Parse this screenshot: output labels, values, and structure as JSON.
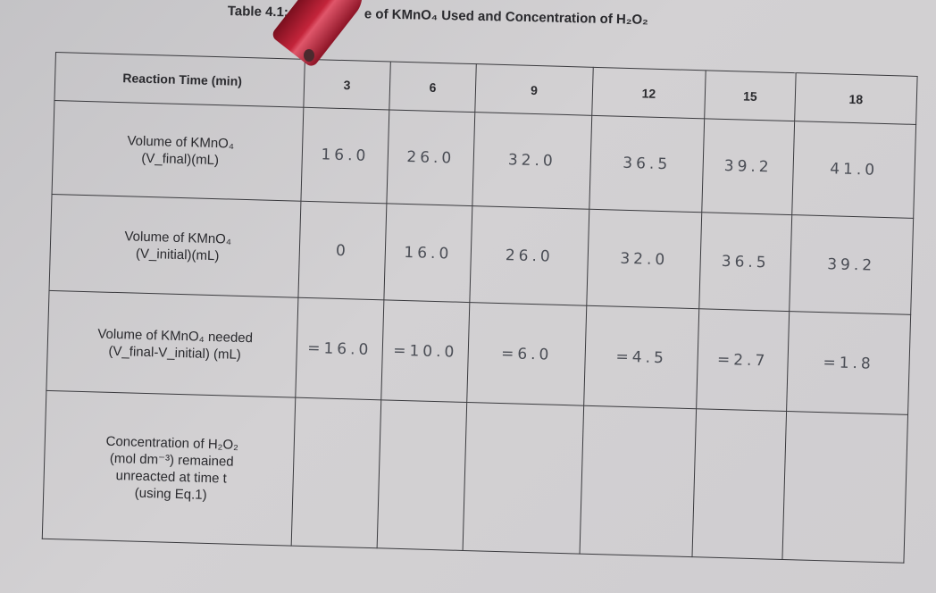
{
  "caption": {
    "label": "Table 4.1:",
    "title": "e of KMnO₄ Used and Concentration of H₂O₂"
  },
  "table": {
    "header_label": "Reaction Time (min)",
    "times": [
      "3",
      "6",
      "9",
      "12",
      "15",
      "18"
    ],
    "rows": [
      {
        "label_lines": [
          "Volume of KMnO₄",
          "(V_final)(mL)"
        ],
        "values": [
          "16.0",
          "26.0",
          "32.0",
          "36.5",
          "39.2",
          "41.0"
        ]
      },
      {
        "label_lines": [
          "Volume of KMnO₄",
          "(V_initial)(mL)"
        ],
        "values": [
          "0",
          "16.0",
          "26.0",
          "32.0",
          "36.5",
          "39.2"
        ]
      },
      {
        "label_lines": [
          "Volume of KMnO₄ needed",
          "(V_final-V_initial) (mL)"
        ],
        "values": [
          "=16.0",
          "=10.0",
          "=6.0",
          "=4.5",
          "=2.7",
          "=1.8"
        ]
      },
      {
        "label_lines": [
          "Concentration of H₂O₂",
          "(mol dm⁻³) remained",
          "unreacted at time t",
          "(using Eq.1)"
        ],
        "values": [
          "",
          "",
          "",
          "",
          "",
          ""
        ]
      }
    ]
  }
}
